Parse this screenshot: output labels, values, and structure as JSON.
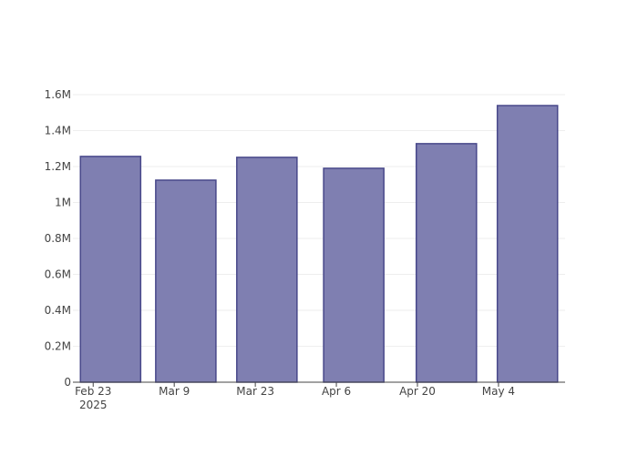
{
  "chart_data": {
    "type": "bar",
    "x": [
      "2025-02-26",
      "2025-03-11",
      "2025-03-25",
      "2025-04-09",
      "2025-04-25",
      "2025-05-09"
    ],
    "values": [
      1256000,
      1124000,
      1251000,
      1190000,
      1327000,
      1539000
    ],
    "color": "#7f7fb1",
    "line_color": "#48488a",
    "xlim": [
      "2025-02-19T12:00:00Z",
      "2025-05-15T12:00:00Z"
    ],
    "xticks": [
      {
        "value": "2025-02-23",
        "label": "Feb 23\n2025"
      },
      {
        "value": "2025-03-09",
        "label": "Mar 9"
      },
      {
        "value": "2025-03-23",
        "label": "Mar 23"
      },
      {
        "value": "2025-04-06",
        "label": "Apr 6"
      },
      {
        "value": "2025-04-20",
        "label": "Apr 20"
      },
      {
        "value": "2025-05-04",
        "label": "May 4"
      }
    ],
    "ylim": [
      0,
      1620000
    ],
    "yticks": [
      0,
      {
        "value": 200000,
        "label": "0.2M"
      },
      {
        "value": 400000,
        "label": "0.4M"
      },
      {
        "value": 600000,
        "label": "0.6M"
      },
      {
        "value": 800000,
        "label": "0.8M"
      },
      {
        "value": 1000000,
        "label": "1M"
      },
      {
        "value": 1200000,
        "label": "1.2M"
      },
      {
        "value": 1400000,
        "label": "1.4M"
      },
      {
        "value": 1600000,
        "label": "1.6M"
      }
    ],
    "grid": true
  }
}
